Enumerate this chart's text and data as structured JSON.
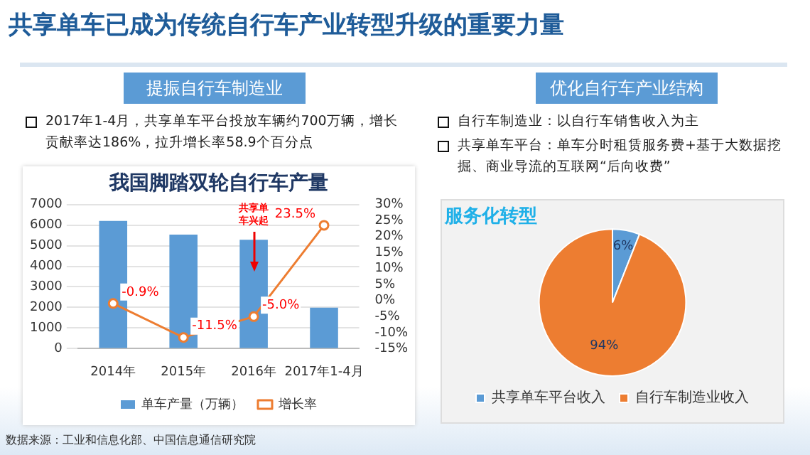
{
  "chart_data": [
    {
      "type": "other",
      "title": "共享单车已成为传统自行车产业转型升级的重要力量",
      "annotations": [
        "提振自行车制造业",
        "2017年1-4月，共享单车平台投放车辆约700万辆，增长贡献率达186%，拉升增长率58.9个百分点",
        "优化自行车产业结构",
        "自行车制造业：以自行车销售收入为主",
        "共享单车平台：单车分时租赁服务费+基于大数据挖掘、商业导流的互联网“后向收费”",
        "数据来源：工业和信息化部、中国信息通信研究院"
      ]
    },
    {
      "type": "bar",
      "title": "我国脚踏双轮自行车产量",
      "categories": [
        "2014年",
        "2015年",
        "2016年",
        "2017年1-4月"
      ],
      "series": [
        {
          "name": "单车产量（万辆）",
          "type": "bar",
          "color": "#5b9bd5",
          "values": [
            6200,
            5540,
            5290,
            1990
          ]
        },
        {
          "name": "增长率",
          "type": "line",
          "axis": "y2",
          "color": "#ed7d31",
          "values": [
            -0.9,
            -11.5,
            -5.0,
            23.5
          ],
          "value_labels": [
            "-0.9%",
            "-11.5%",
            "-5.0%",
            "23.5%"
          ]
        }
      ],
      "ylim": [
        0,
        7000
      ],
      "yticks": [
        0,
        1000,
        2000,
        3000,
        4000,
        5000,
        6000,
        7000
      ],
      "y2lim": [
        -15,
        30
      ],
      "y2ticks": [
        {
          "value": -15,
          "label": "-15%"
        },
        {
          "value": -10,
          "label": "-10%"
        },
        {
          "value": -5,
          "label": "-5%"
        },
        {
          "value": 0,
          "label": "0%"
        },
        {
          "value": 5,
          "label": "5%"
        },
        {
          "value": 10,
          "label": "10%"
        },
        {
          "value": 15,
          "label": "15%"
        },
        {
          "value": 20,
          "label": "20%"
        },
        {
          "value": 25,
          "label": "25%"
        },
        {
          "value": 30,
          "label": "30%"
        }
      ],
      "grid": "y",
      "legend": "bottom",
      "marker": "circle",
      "annotations": [
        "共享单车兴起"
      ]
    },
    {
      "type": "pie",
      "title": "服务化转型",
      "categories": [
        "共享单车平台收入",
        "自行车制造业收入"
      ],
      "values": [
        6,
        94
      ],
      "colors": [
        "#5b9bd5",
        "#ed7d31"
      ],
      "value_labels": [
        "6%",
        "94%"
      ],
      "legend": "bottom"
    }
  ]
}
